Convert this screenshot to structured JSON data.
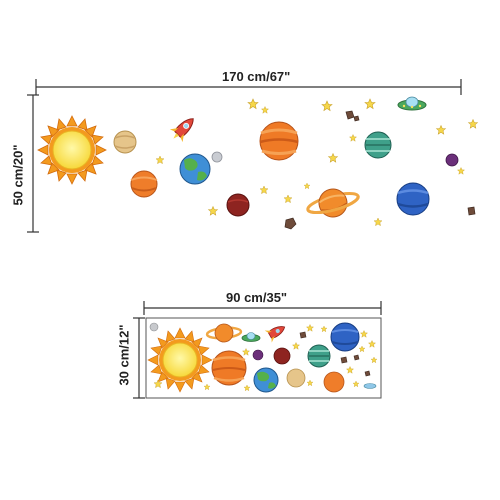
{
  "large_decal": {
    "width_label": "170 cm/67\"",
    "height_label": "50 cm/20\""
  },
  "sticker_sheet": {
    "width_label": "90 cm/35\"",
    "height_label": "30 cm/12\""
  },
  "icons": [
    "sun-icon",
    "planet-icon",
    "saturn-icon",
    "rocket-icon",
    "ufo-icon",
    "star-icon",
    "asteroid-icon"
  ]
}
